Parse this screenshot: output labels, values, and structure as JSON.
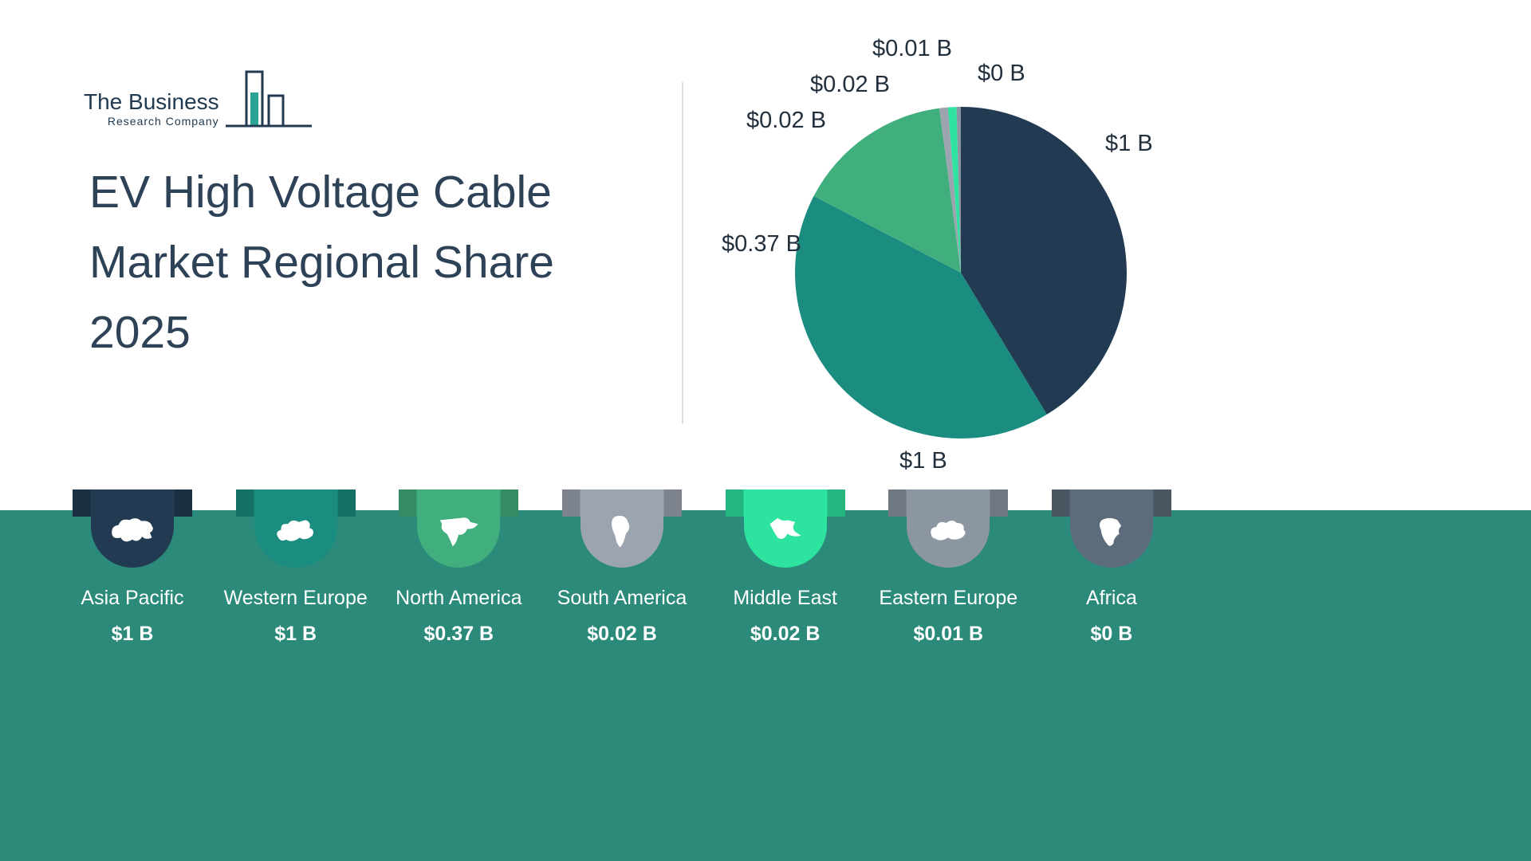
{
  "logo": {
    "name": "The Business",
    "subname": "Research Company"
  },
  "title": {
    "line1": "EV High Voltage Cable",
    "line2": "Market Regional Share",
    "line3": "2025"
  },
  "colors": {
    "band": "#2B8A7A",
    "title_text": "#2D4256",
    "pie_label_text": "#22303E",
    "legend_text": "#FFFFFF",
    "divider": "#D8DCE2",
    "logo_navy": "#223A50",
    "logo_teal": "#2AA493"
  },
  "chart_data": {
    "type": "pie",
    "title": "EV High Voltage Cable Market Regional Share 2025",
    "categories": [
      "Asia Pacific",
      "Western Europe",
      "North America",
      "South America",
      "Middle East",
      "Eastern Europe",
      "Africa"
    ],
    "values": [
      1,
      1,
      0.37,
      0.02,
      0.02,
      0.01,
      0
    ],
    "labels": [
      "$1 B",
      "$1 B",
      "$0.37 B",
      "$0.02 B",
      "$0.02 B",
      "$0.01 B",
      "$0 B"
    ],
    "colors": [
      "#223B52",
      "#1B8C80",
      "#41AF7D",
      "#9CA4AF",
      "#2EE3A0",
      "#8C96A2",
      "#5C6C7B"
    ],
    "start_angle_deg": -90,
    "direction": "clockwise",
    "legend_position": "bottom"
  }
}
